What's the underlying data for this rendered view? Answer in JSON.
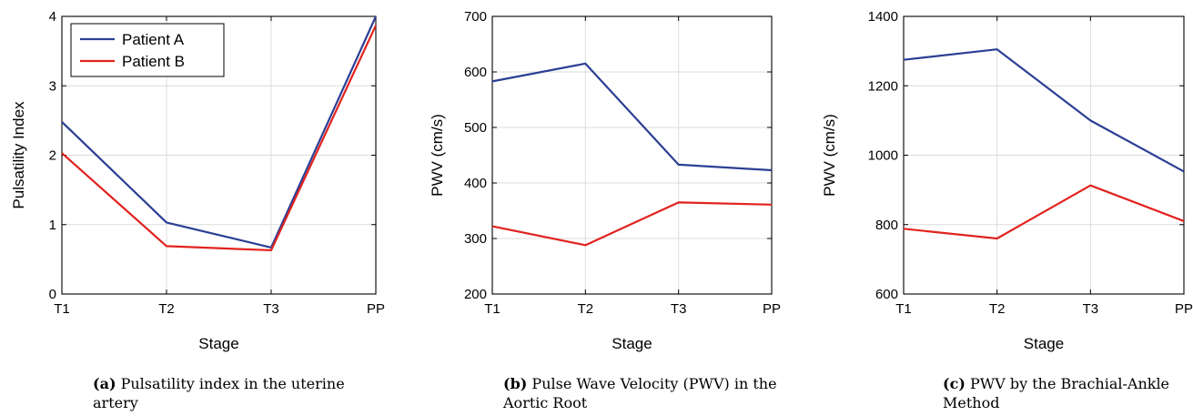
{
  "chart_data": [
    {
      "type": "line",
      "categories": [
        "T1",
        "T2",
        "T3",
        "PP"
      ],
      "series": [
        {
          "name": "Patient A",
          "values": [
            2.48,
            1.03,
            0.67,
            4.0
          ],
          "color": "#2b3f94"
        },
        {
          "name": "Patient B",
          "values": [
            2.03,
            0.69,
            0.63,
            3.87
          ],
          "color": "#e1231f"
        }
      ],
      "xlabel": "Stage",
      "ylabel": "Pulsatility Index",
      "ylim": [
        0,
        4
      ],
      "yticks": [
        "0",
        "1",
        "2",
        "3",
        "4"
      ],
      "grid": true,
      "legend": "top-left",
      "caption_tag": "(a)",
      "caption": "Pulsatility index in the uterine artery"
    },
    {
      "type": "line",
      "categories": [
        "T1",
        "T2",
        "T3",
        "PP"
      ],
      "series": [
        {
          "values": [
            583,
            615,
            433,
            423
          ],
          "color": "#2b3f94"
        },
        {
          "values": [
            322,
            288,
            365,
            361
          ],
          "color": "#e1231f"
        }
      ],
      "xlabel": "Stage",
      "ylabel": "PWV (cm/s)",
      "ylim": [
        200,
        700
      ],
      "yticks": [
        "200",
        "300",
        "400",
        "500",
        "600",
        "700"
      ],
      "grid": true,
      "caption_tag": "(b)",
      "caption": "Pulse Wave Velocity (PWV) in the Aortic Root"
    },
    {
      "type": "line",
      "categories": [
        "T1",
        "T2",
        "T3",
        "PP"
      ],
      "series": [
        {
          "values": [
            1275,
            1305,
            1100,
            953
          ],
          "color": "#2b3f94"
        },
        {
          "values": [
            788,
            760,
            913,
            810
          ],
          "color": "#e1231f"
        }
      ],
      "xlabel": "Stage",
      "ylabel": "PWV (cm/s)",
      "ylim": [
        600,
        1400
      ],
      "yticks": [
        "600",
        "800",
        "1000",
        "1200",
        "1400"
      ],
      "grid": true,
      "caption_tag": "(c)",
      "caption": "PWV by the Brachial-Ankle Method"
    }
  ]
}
